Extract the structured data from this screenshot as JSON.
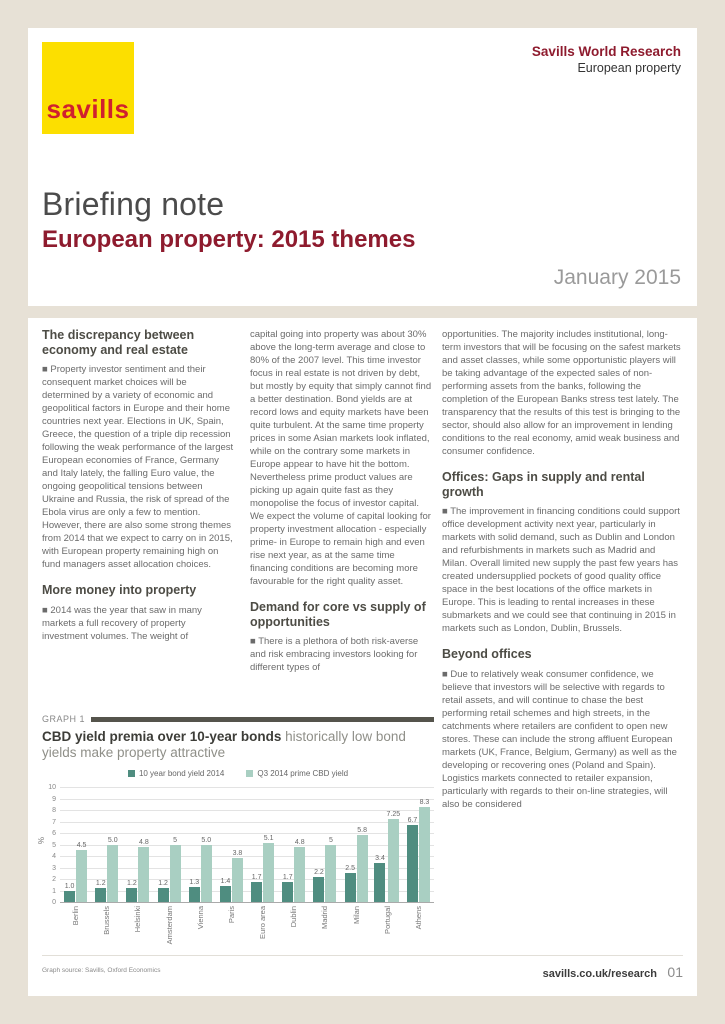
{
  "brand": {
    "logo_text": "savills",
    "research_title": "Savills World Research",
    "research_subtitle": "European property"
  },
  "header": {
    "title": "Briefing note",
    "subtitle": "European property: 2015 themes",
    "date": "January 2015"
  },
  "col1": {
    "heading1": "The discrepancy between economy and real estate",
    "para1": "■ Property investor sentiment and their consequent market choices will be determined by a variety of economic and geopolitical factors in Europe and their home countries next year. Elections in UK, Spain, Greece, the question of a triple dip recession following the weak performance of the largest European economies of France, Germany and Italy lately, the falling Euro value, the ongoing geopolitical tensions between Ukraine and Russia, the risk of spread of the Ebola virus are only a few to mention. However, there are also some strong themes from 2014 that we expect to carry on in 2015, with European property remaining high on fund managers asset allocation choices.",
    "heading2": "More money into property",
    "para2": "■ 2014 was the year that saw in many markets a full recovery of property investment volumes. The weight of"
  },
  "col2": {
    "para1": "capital going into property was about 30% above the long-term average and close to 80% of the 2007 level. This time investor focus in real estate is not driven by debt, but mostly by equity that simply cannot find a better destination. Bond yields are at record lows and equity markets have been quite turbulent. At the same time property prices in some Asian markets look inflated, while on the contrary some markets in Europe appear to have hit the bottom. Nevertheless prime product values are picking up again quite fast as they monopolise the focus of investor capital. We expect the volume of capital looking for property investment allocation - especially prime- in Europe to remain high and even rise next year, as at the same time financing conditions are becoming more favourable for the right quality asset.",
    "heading1": "Demand for core vs supply of opportunities",
    "para2": "■ There is a plethora of both risk-averse and risk embracing investors looking for different types of"
  },
  "col3": {
    "para1": "opportunities. The majority includes institutional, long-term investors that will be focusing on the safest markets and asset classes, while some opportunistic players will be taking advantage of the expected sales of non-performing assets from the banks, following the completion of the European Banks stress test lately. The transparency that the results of this test is bringing to the sector, should also allow for an improvement in lending conditions to the real economy, amid weak business and consumer confidence.",
    "heading1": "Offices: Gaps in supply and rental growth",
    "para2": "■ The improvement in financing conditions could support office development activity next year, particularly in markets with solid demand, such as Dublin and London and refurbishments in markets such as Madrid and Milan. Overall limited new supply the past few years has created undersupplied pockets of good quality office space in the best locations of the office markets in Europe. This is leading to rental increases in these submarkets and we could see that continuing in 2015 in markets such as London, Dublin, Brussels.",
    "heading2": "Beyond offices",
    "para3": "■ Due to relatively weak consumer confidence, we believe that investors will be selective with regards to retail assets, and will continue to chase the best performing retail schemes and high streets, in the catchments where retailers are confident to open new stores. These can include the strong affluent European markets (UK, France, Belgium, Germany) as well as the developing or recovering ones (Poland and Spain). Logistics markets connected to retailer expansion, particularly with regards to their on-line strategies, will also be considered"
  },
  "graph": {
    "label": "GRAPH 1",
    "title_bold": "CBD yield premia over 10-year bonds",
    "title_rest": " historically low bond yields make property attractive",
    "source": "Graph source: Savills, Oxford Economics"
  },
  "chart_data": {
    "type": "bar",
    "title": "CBD yield premia over 10-year bonds - historically low bond yields make property attractive",
    "xlabel": "",
    "ylabel": "%",
    "ylim": [
      0,
      10
    ],
    "yticks": [
      0,
      1,
      2,
      3,
      4,
      5,
      6,
      7,
      8,
      9,
      10
    ],
    "grid": true,
    "legend_position": "top",
    "categories": [
      "Berlin",
      "Brussels",
      "Helsinki",
      "Amsterdam",
      "Vienna",
      "Paris",
      "Euro area",
      "Dublin",
      "Madrid",
      "Milan",
      "Portugal",
      "Athens"
    ],
    "series": [
      {
        "name": "10 year bond yield 2014",
        "color": "#4f8d80",
        "values": [
          1.0,
          1.2,
          1.2,
          1.2,
          1.3,
          1.4,
          1.7,
          1.7,
          2.2,
          2.5,
          3.4,
          6.7
        ],
        "labels": [
          "1.0",
          "1.2",
          "1.2",
          "1.2",
          "1.3",
          "1.4",
          "1.7",
          "1.7",
          "2.2",
          "2.5",
          "3.4",
          "6.7"
        ]
      },
      {
        "name": "Q3 2014 prime CBD yield",
        "color": "#a9cfc2",
        "values": [
          4.5,
          5.0,
          4.8,
          5,
          5.0,
          3.8,
          5.1,
          4.8,
          5,
          5.8,
          7.25,
          8.3
        ],
        "labels": [
          "4.5",
          "5.0",
          "4.8",
          "5",
          "5.0",
          "3.8",
          "5.1",
          "4.8",
          "5",
          "5.8",
          "7.25",
          "8.3"
        ]
      }
    ]
  },
  "footer": {
    "link": "savills.co.uk/research",
    "page": "01"
  },
  "colors": {
    "brand_red": "#d0202e",
    "heading_red": "#8e1b2e",
    "logo_yellow": "#fcdf00",
    "background_beige": "#e7e1d6",
    "bond_teal": "#4f8d80",
    "cbd_teal": "#a9cfc2"
  }
}
